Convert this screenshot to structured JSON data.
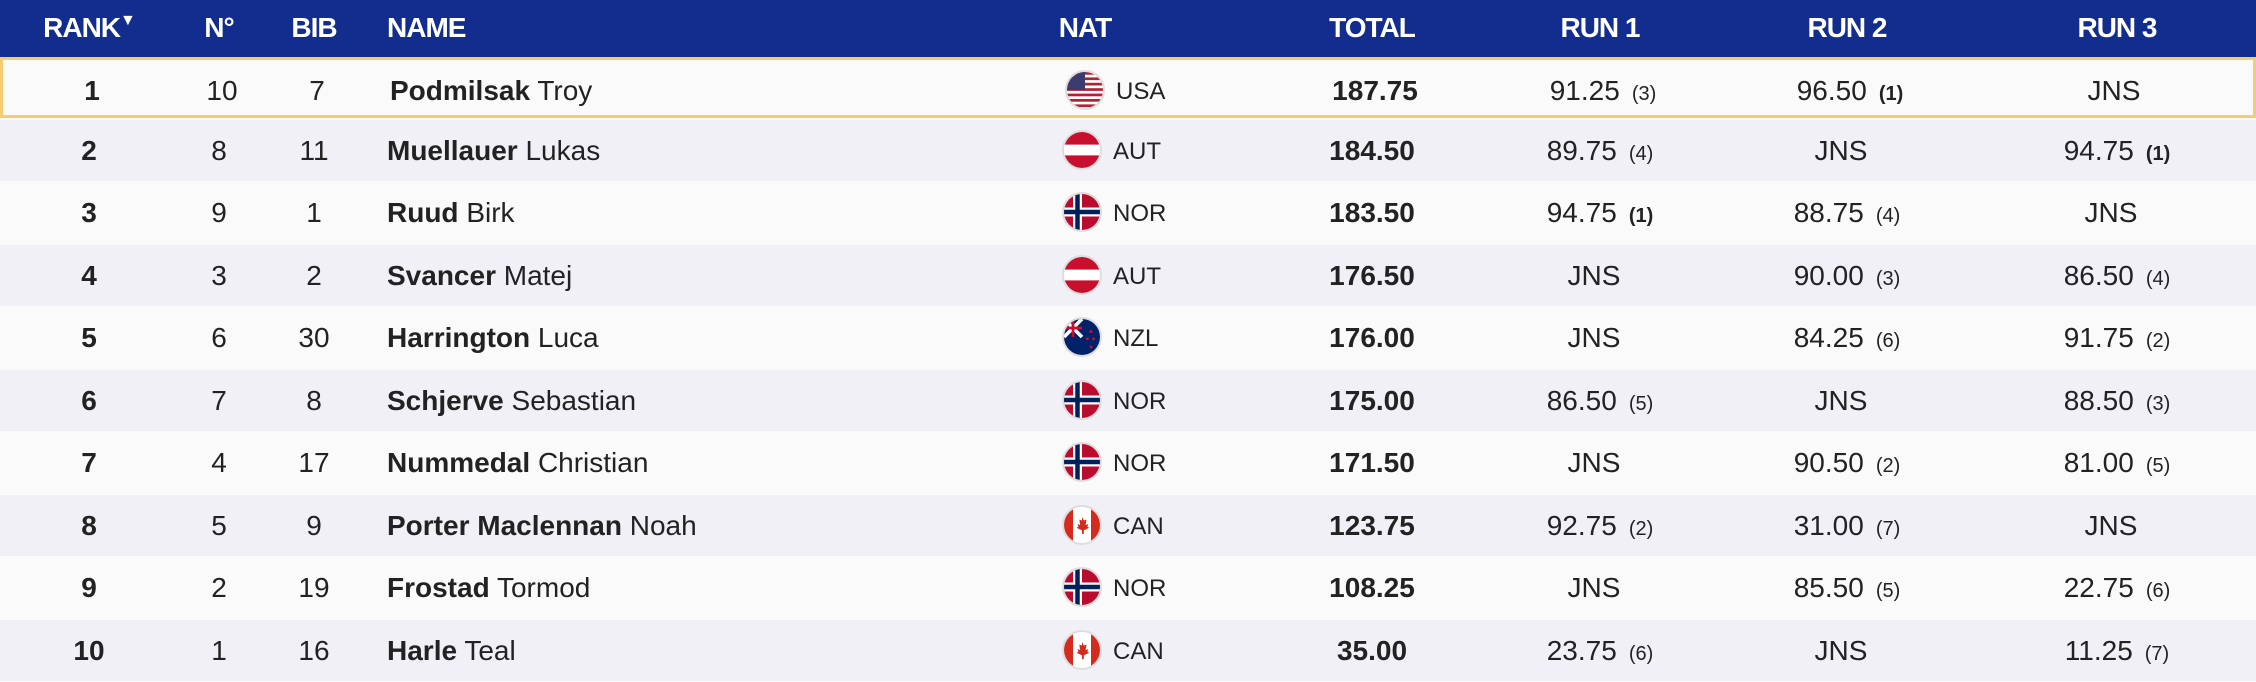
{
  "header": {
    "rank": "RANK",
    "sort_indicator": "▼",
    "no": "N°",
    "bib": "BIB",
    "name": "NAME",
    "nat": "NAT",
    "total": "TOTAL",
    "run1": "RUN 1",
    "run2": "RUN 2",
    "run3": "RUN 3"
  },
  "colors": {
    "header_bg": "#132d8e",
    "highlight_border": "#f5cc72",
    "alt_row": "#f1f0f6"
  },
  "rows": [
    {
      "rank": "1",
      "no": "10",
      "bib": "7",
      "last": "Podmilsak",
      "first": "Troy",
      "nat": "USA",
      "total": "187.75",
      "run1": "91.25",
      "run1_rank": "(3)",
      "run2": "96.50",
      "run2_rank": "(1)",
      "run3": "JNS",
      "run3_rank": ""
    },
    {
      "rank": "2",
      "no": "8",
      "bib": "11",
      "last": "Muellauer",
      "first": "Lukas",
      "nat": "AUT",
      "total": "184.50",
      "run1": "89.75",
      "run1_rank": "(4)",
      "run2": "JNS",
      "run2_rank": "",
      "run3": "94.75",
      "run3_rank": "(1)"
    },
    {
      "rank": "3",
      "no": "9",
      "bib": "1",
      "last": "Ruud",
      "first": "Birk",
      "nat": "NOR",
      "total": "183.50",
      "run1": "94.75",
      "run1_rank": "(1)",
      "run2": "88.75",
      "run2_rank": "(4)",
      "run3": "JNS",
      "run3_rank": ""
    },
    {
      "rank": "4",
      "no": "3",
      "bib": "2",
      "last": "Svancer",
      "first": "Matej",
      "nat": "AUT",
      "total": "176.50",
      "run1": "JNS",
      "run1_rank": "",
      "run2": "90.00",
      "run2_rank": "(3)",
      "run3": "86.50",
      "run3_rank": "(4)"
    },
    {
      "rank": "5",
      "no": "6",
      "bib": "30",
      "last": "Harrington",
      "first": "Luca",
      "nat": "NZL",
      "total": "176.00",
      "run1": "JNS",
      "run1_rank": "",
      "run2": "84.25",
      "run2_rank": "(6)",
      "run3": "91.75",
      "run3_rank": "(2)"
    },
    {
      "rank": "6",
      "no": "7",
      "bib": "8",
      "last": "Schjerve",
      "first": "Sebastian",
      "nat": "NOR",
      "total": "175.00",
      "run1": "86.50",
      "run1_rank": "(5)",
      "run2": "JNS",
      "run2_rank": "",
      "run3": "88.50",
      "run3_rank": "(3)"
    },
    {
      "rank": "7",
      "no": "4",
      "bib": "17",
      "last": "Nummedal",
      "first": "Christian",
      "nat": "NOR",
      "total": "171.50",
      "run1": "JNS",
      "run1_rank": "",
      "run2": "90.50",
      "run2_rank": "(2)",
      "run3": "81.00",
      "run3_rank": "(5)"
    },
    {
      "rank": "8",
      "no": "5",
      "bib": "9",
      "last": "Porter Maclennan",
      "first": "Noah",
      "nat": "CAN",
      "total": "123.75",
      "run1": "92.75",
      "run1_rank": "(2)",
      "run2": "31.00",
      "run2_rank": "(7)",
      "run3": "JNS",
      "run3_rank": ""
    },
    {
      "rank": "9",
      "no": "2",
      "bib": "19",
      "last": "Frostad",
      "first": "Tormod",
      "nat": "NOR",
      "total": "108.25",
      "run1": "JNS",
      "run1_rank": "",
      "run2": "85.50",
      "run2_rank": "(5)",
      "run3": "22.75",
      "run3_rank": "(6)"
    },
    {
      "rank": "10",
      "no": "1",
      "bib": "16",
      "last": "Harle",
      "first": "Teal",
      "nat": "CAN",
      "total": "35.00",
      "run1": "23.75",
      "run1_rank": "(6)",
      "run2": "JNS",
      "run2_rank": "",
      "run3": "11.25",
      "run3_rank": "(7)"
    }
  ]
}
